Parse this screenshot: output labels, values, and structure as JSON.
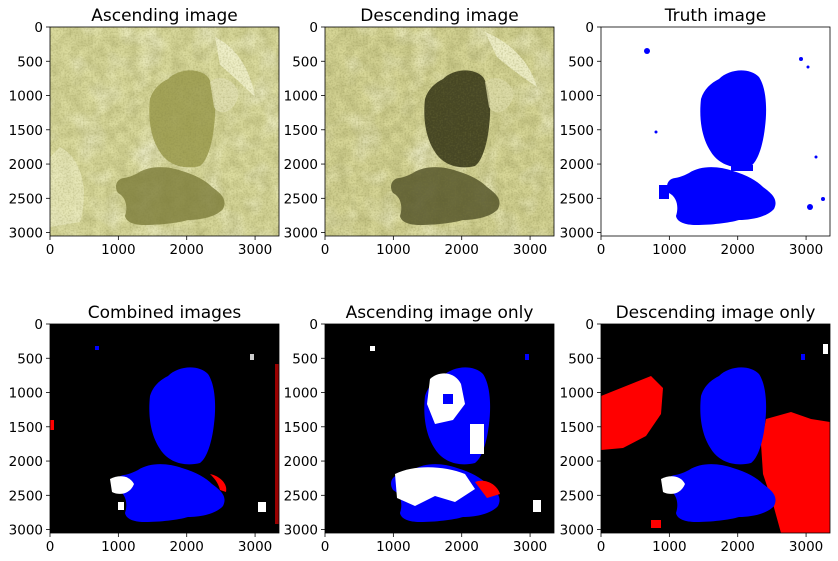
{
  "chart_data": [
    {
      "type": "image",
      "title": "Ascending image",
      "xticks": [
        0,
        1000,
        2000,
        3000
      ],
      "yticks": [
        0,
        500,
        1000,
        1500,
        2000,
        2500,
        3000
      ],
      "xlim": [
        0,
        3350
      ],
      "ylim": [
        3050,
        0
      ],
      "content": "yellow-tinted satellite radar image of a valley with a large lake"
    },
    {
      "type": "image",
      "title": "Descending image",
      "xticks": [
        0,
        1000,
        2000,
        3000
      ],
      "yticks": [
        0,
        500,
        1000,
        1500,
        2000,
        2500,
        3000
      ],
      "xlim": [
        0,
        3350
      ],
      "ylim": [
        3050,
        0
      ],
      "content": "yellow-tinted satellite radar image with dark lake region"
    },
    {
      "type": "image",
      "title": "Truth image",
      "xticks": [
        0,
        1000,
        2000,
        3000
      ],
      "yticks": [
        0,
        500,
        1000,
        1500,
        2000,
        2500,
        3000
      ],
      "xlim": [
        0,
        3350
      ],
      "ylim": [
        3050,
        0
      ],
      "content": "blue water mask on white background"
    },
    {
      "type": "image",
      "title": "Combined images",
      "xticks": [
        0,
        1000,
        2000,
        3000
      ],
      "yticks": [
        0,
        500,
        1000,
        1500,
        2000,
        2500,
        3000
      ],
      "xlim": [
        0,
        3350
      ],
      "ylim": [
        3050,
        0
      ],
      "content": "classification map: blue correct water, black background, red false positives, white misses"
    },
    {
      "type": "image",
      "title": "Ascending image only",
      "xticks": [
        0,
        1000,
        2000,
        3000
      ],
      "yticks": [
        0,
        500,
        1000,
        1500,
        2000,
        2500,
        3000
      ],
      "xlim": [
        0,
        3350
      ],
      "ylim": [
        3050,
        0
      ],
      "content": "classification map with large white missed regions"
    },
    {
      "type": "image",
      "title": "Descending image only",
      "xticks": [
        0,
        1000,
        2000,
        3000
      ],
      "yticks": [
        0,
        500,
        1000,
        1500,
        2000,
        2500,
        3000
      ],
      "xlim": [
        0,
        3350
      ],
      "ylim": [
        3050,
        0
      ],
      "content": "classification map with large red false-positive regions"
    }
  ],
  "colors": {
    "water": "#0000ff",
    "false_positive": "#ff0000",
    "background_dark": "#000000",
    "background_light": "#ffffff",
    "terrain_light": "#e4e3a6",
    "terrain_mid": "#b7b66a",
    "terrain_dark": "#58582b"
  }
}
